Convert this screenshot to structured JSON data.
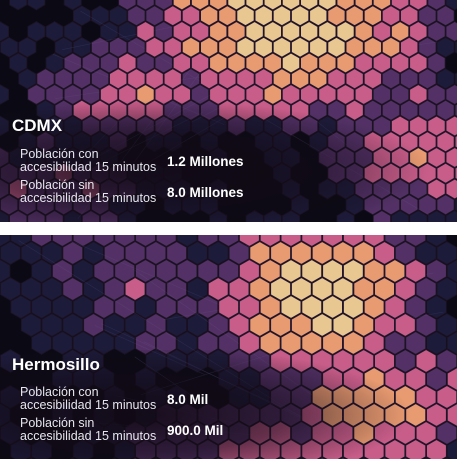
{
  "labels": {
    "with_access": "Población con accesibilidad 15 minutos",
    "without_access": "Población sin accesibilidad 15 minutos"
  },
  "cities": [
    {
      "name": "CDMX",
      "with_access": "1.2 Millones",
      "without_access": "8.0 Millones"
    },
    {
      "name": "Hermosillo",
      "with_access": "8.0 Mil",
      "without_access": "900.0 Mil"
    }
  ],
  "colors": {
    "hex_light": "#e9c790",
    "hex_orange": "#e89a70",
    "hex_pink": "#c95d8a",
    "hex_purple": "#6b3f82",
    "base_blue": "#2c2a5a"
  }
}
